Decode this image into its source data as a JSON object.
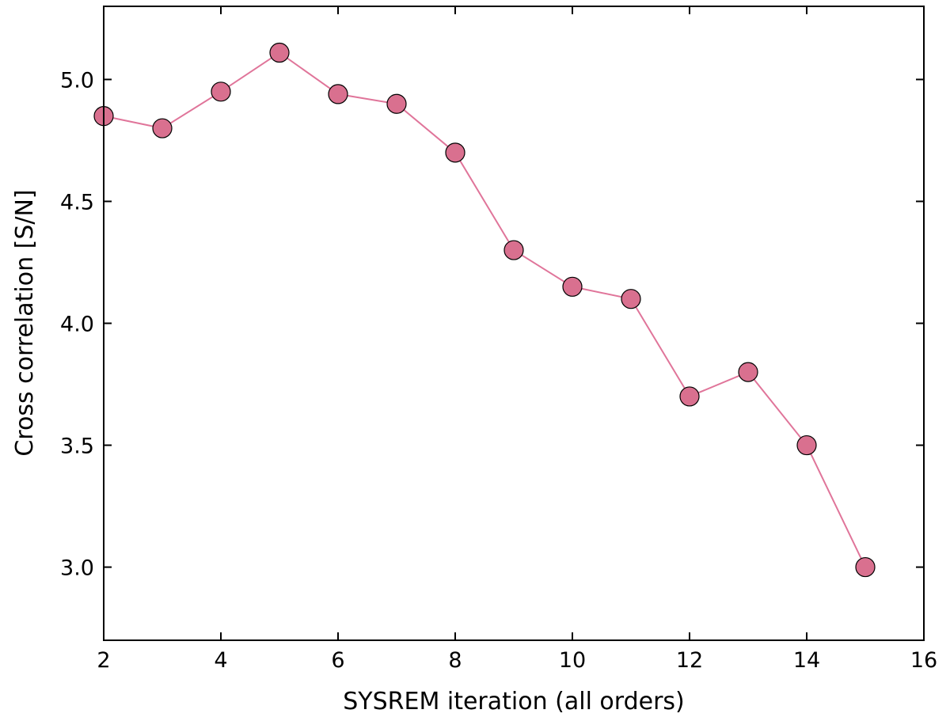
{
  "chart_data": {
    "type": "line",
    "xlabel": "SYSREM iteration (all orders)",
    "ylabel": "Cross correlation [S/N]",
    "xlim": [
      2,
      16
    ],
    "ylim": [
      2.7,
      5.3
    ],
    "x_ticks": [
      2,
      4,
      6,
      8,
      10,
      12,
      14,
      16
    ],
    "y_ticks": [
      3.0,
      3.5,
      4.0,
      4.5,
      5.0
    ],
    "x_tick_labels": [
      "2",
      "4",
      "6",
      "8",
      "10",
      "12",
      "14",
      "16"
    ],
    "y_tick_labels": [
      "3.0",
      "3.5",
      "4.0",
      "4.5",
      "5.0"
    ],
    "grid": false,
    "series": [
      {
        "x": [
          2,
          3,
          4,
          5,
          6,
          7,
          8,
          9,
          10,
          11,
          12,
          13,
          14,
          15
        ],
        "values": [
          4.85,
          4.8,
          4.95,
          5.11,
          4.94,
          4.9,
          4.7,
          4.3,
          4.15,
          4.1,
          3.7,
          3.8,
          3.5,
          3.0
        ],
        "color": "#d9708f",
        "line_color": "#e0759a",
        "marker": "circle"
      }
    ]
  }
}
